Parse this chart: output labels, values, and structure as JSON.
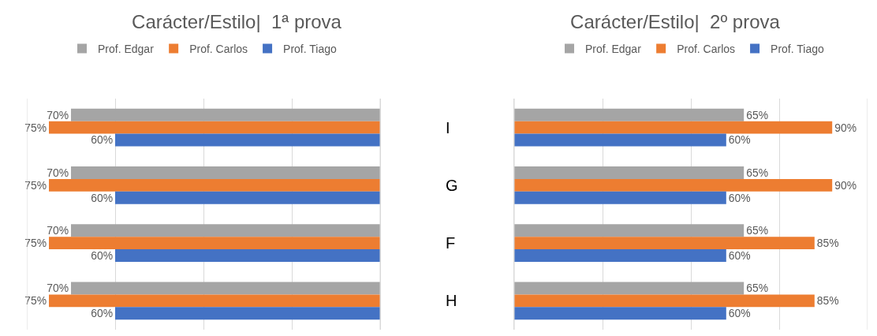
{
  "chart_data": [
    {
      "type": "bar",
      "orientation": "horizontal",
      "title": "Carácter/Estilo|  1ª prova",
      "categories": [
        "I",
        "G",
        "F",
        "H"
      ],
      "series": [
        {
          "name": "Prof. Edgar",
          "color": "#a5a5a5",
          "values": [
            70,
            70,
            70,
            70
          ],
          "value_labels": [
            "70%",
            "70%",
            "70%",
            "70%"
          ]
        },
        {
          "name": "Prof. Carlos",
          "color": "#ed7d31",
          "values": [
            75,
            75,
            75,
            75
          ],
          "value_labels": [
            "75%",
            "75%",
            "75%",
            "75%"
          ]
        },
        {
          "name": "Prof. Tiago",
          "color": "#4472c4",
          "values": [
            60,
            60,
            60,
            60
          ],
          "value_labels": [
            "60%",
            "60%",
            "60%",
            "60%"
          ]
        }
      ],
      "xlim": [
        80,
        0
      ],
      "xticks": [
        {
          "value": 0,
          "label": null
        },
        {
          "value": 20,
          "label": null
        },
        {
          "value": 40,
          "label": null
        },
        {
          "value": 60,
          "label": null
        },
        {
          "value": 80,
          "label": null
        }
      ],
      "grid": "x",
      "legend": "top",
      "tick_labels": "y"
    },
    {
      "type": "bar",
      "orientation": "horizontal",
      "title": "Carácter/Estilo|  2º prova",
      "categories": [
        null,
        null,
        null,
        null
      ],
      "series": [
        {
          "name": "Prof. Edgar",
          "color": "#a5a5a5",
          "values": [
            65,
            65,
            65,
            65
          ],
          "value_labels": [
            "65%",
            "65%",
            "65%",
            "65%"
          ]
        },
        {
          "name": "Prof. Carlos",
          "color": "#ed7d31",
          "values": [
            90,
            90,
            85,
            85
          ],
          "value_labels": [
            "90%",
            "90%",
            "85%",
            "85%"
          ]
        },
        {
          "name": "Prof. Tiago",
          "color": "#4472c4",
          "values": [
            60,
            60,
            60,
            60
          ],
          "value_labels": [
            "60%",
            "60%",
            "60%",
            "60%"
          ]
        }
      ],
      "xlim": [
        0,
        100
      ],
      "xticks": [
        {
          "value": 0,
          "label": null
        },
        {
          "value": 25,
          "label": null
        },
        {
          "value": 50,
          "label": null
        },
        {
          "value": 75,
          "label": null
        },
        {
          "value": 100,
          "label": null
        }
      ],
      "grid": "x",
      "legend": "top",
      "tick_labels": false
    }
  ]
}
